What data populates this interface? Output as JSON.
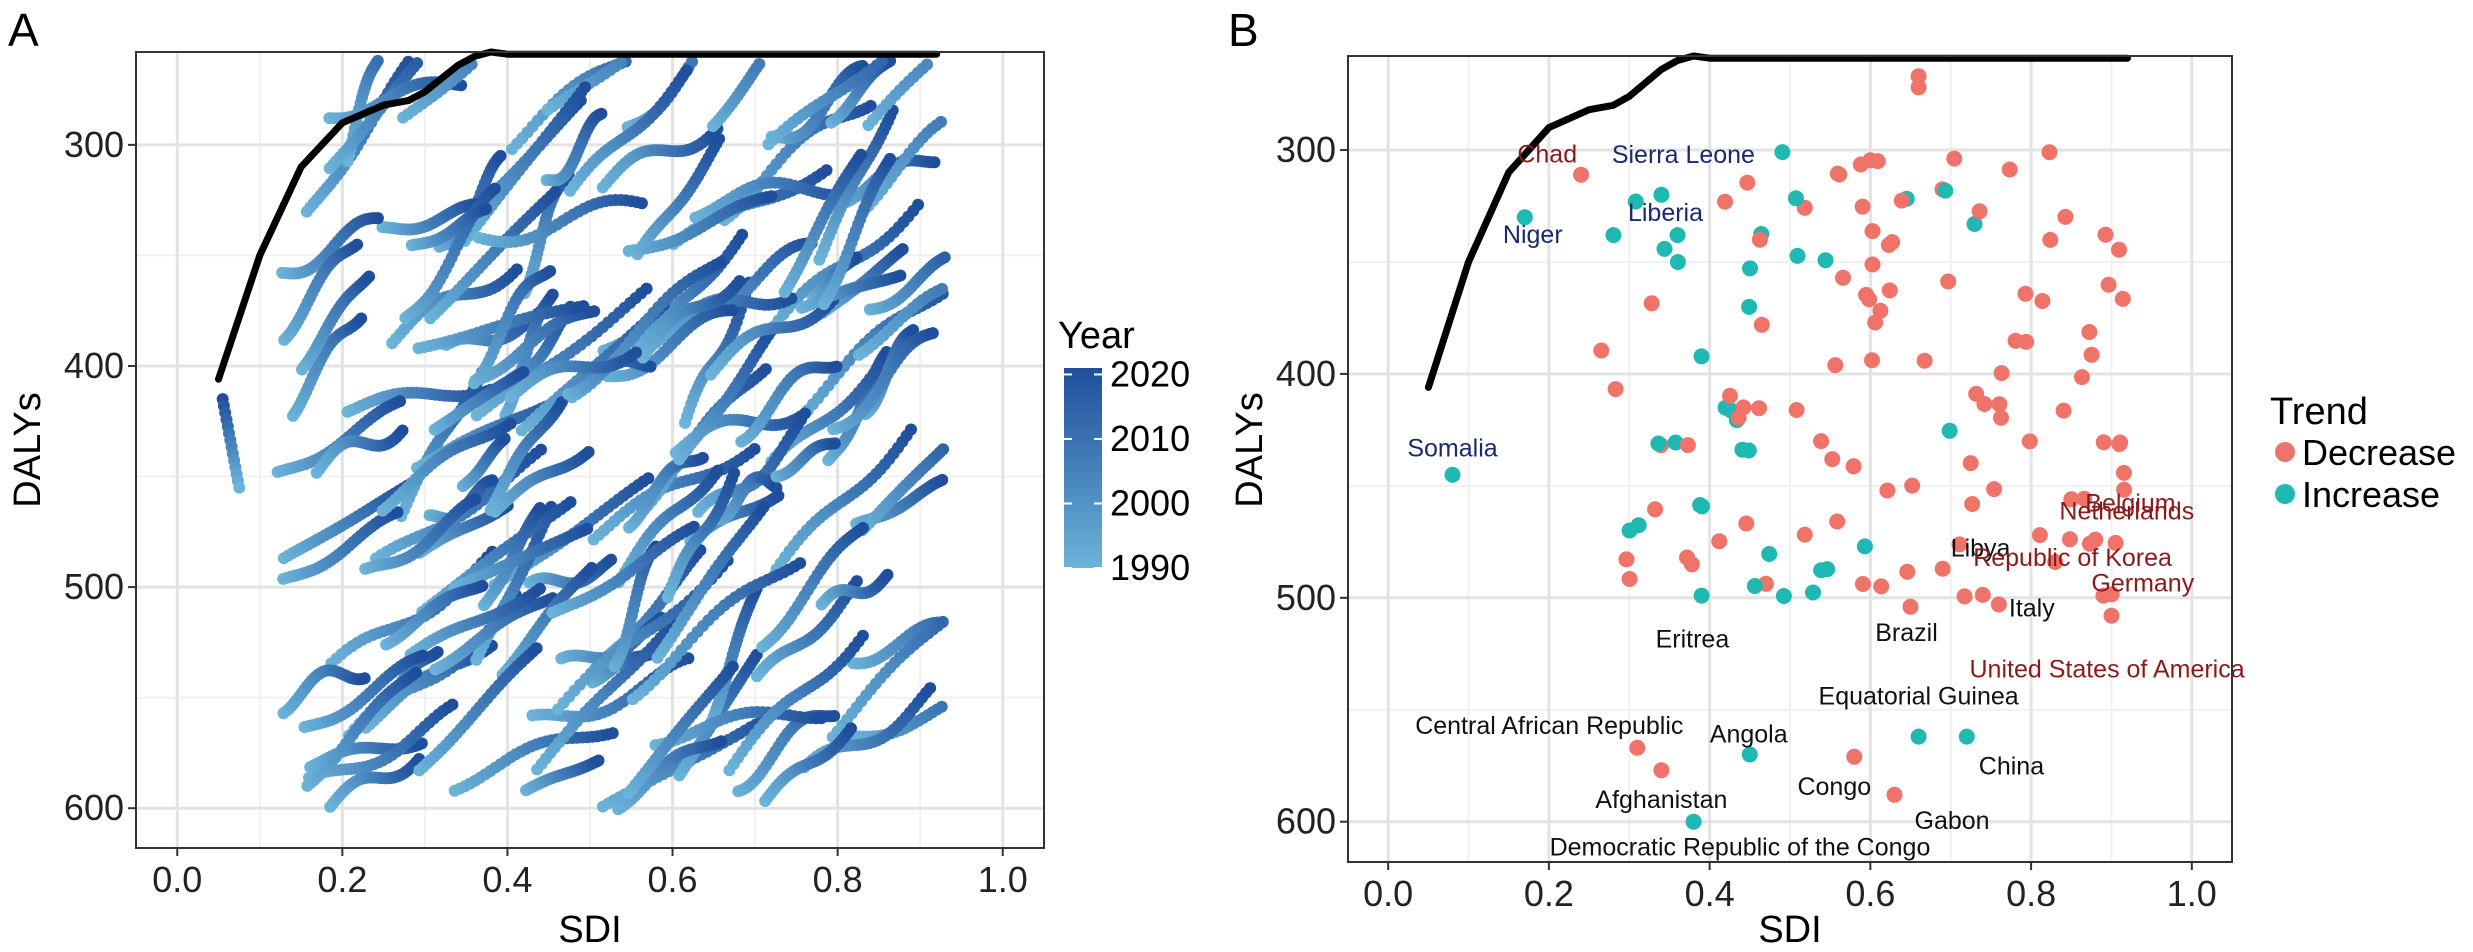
{
  "chart_data": [
    {
      "panel": "A",
      "type": "scatter",
      "xlabel": "SDI",
      "ylabel": "DALYs",
      "xlim": [
        -0.05,
        1.05
      ],
      "ylim": [
        618,
        258
      ],
      "y_reversed": true,
      "xticks": [
        "0.0",
        "0.2",
        "0.4",
        "0.6",
        "0.8",
        "1.0"
      ],
      "yticks": [
        "300",
        "400",
        "500",
        "600"
      ],
      "grid": true,
      "legend": {
        "title": "Year",
        "type": "colorbar",
        "placement": "right",
        "labels": [
          "2020",
          "2010",
          "2000",
          "1990"
        ],
        "min": 1990,
        "max": 2021,
        "color_low": "#6bb3d9",
        "color_high": "#1f4e9c"
      },
      "frontier": {
        "sdi": [
          0.05,
          0.1,
          0.15,
          0.2,
          0.25,
          0.28,
          0.3,
          0.32,
          0.34,
          0.36,
          0.38,
          0.4,
          0.5,
          0.6,
          0.7,
          0.8,
          0.92
        ],
        "dalys": [
          406,
          350,
          310,
          290,
          282,
          280,
          276,
          270,
          264,
          260,
          258,
          259,
          259,
          259,
          259,
          259,
          259
        ],
        "color": "#000000"
      }
    },
    {
      "panel": "B",
      "type": "scatter",
      "xlabel": "SDI",
      "ylabel": "DALYs",
      "xlim": [
        -0.05,
        1.05
      ],
      "ylim": [
        618,
        258
      ],
      "y_reversed": true,
      "xticks": [
        "0.0",
        "0.2",
        "0.4",
        "0.6",
        "0.8",
        "1.0"
      ],
      "yticks": [
        "300",
        "400",
        "500",
        "600"
      ],
      "grid": true,
      "legend": {
        "title": "Trend",
        "placement": "right",
        "entries": [
          {
            "name": "Decrease",
            "color": "#ef7369"
          },
          {
            "name": "Increase",
            "color": "#1fb8b2"
          }
        ]
      },
      "frontier": {
        "sdi": [
          0.05,
          0.1,
          0.15,
          0.2,
          0.25,
          0.28,
          0.3,
          0.32,
          0.34,
          0.36,
          0.38,
          0.4,
          0.5,
          0.6,
          0.7,
          0.8,
          0.92
        ],
        "dalys": [
          406,
          350,
          310,
          290,
          282,
          280,
          276,
          270,
          264,
          260,
          258,
          259,
          259,
          259,
          259,
          259,
          259
        ],
        "color": "#000000"
      },
      "labeled_points": [
        {
          "name": "Chad",
          "sdi": 0.24,
          "dalys": 311,
          "trend": "Decrease"
        },
        {
          "name": "Sierra Leone",
          "sdi": 0.34,
          "dalys": 320,
          "trend": "Increase"
        },
        {
          "name": "Liberia",
          "sdi": 0.36,
          "dalys": 338,
          "trend": "Increase"
        },
        {
          "name": "Niger",
          "sdi": 0.17,
          "dalys": 330,
          "trend": "Increase"
        },
        {
          "name": "Somalia",
          "sdi": 0.08,
          "dalys": 445,
          "trend": "Increase"
        },
        {
          "name": "Belgium",
          "sdi": 0.85,
          "dalys": 456,
          "trend": "Decrease"
        },
        {
          "name": "Netherlands",
          "sdi": 0.88,
          "dalys": 474,
          "trend": "Decrease"
        },
        {
          "name": "Libya",
          "sdi": 0.69,
          "dalys": 487,
          "trend": "Decrease"
        },
        {
          "name": "Republic of Korea",
          "sdi": 0.83,
          "dalys": 484,
          "trend": "Decrease"
        },
        {
          "name": "Italy",
          "sdi": 0.76,
          "dalys": 503,
          "trend": "Decrease"
        },
        {
          "name": "Germany",
          "sdi": 0.89,
          "dalys": 499,
          "trend": "Decrease"
        },
        {
          "name": "Brazil",
          "sdi": 0.65,
          "dalys": 504,
          "trend": "Decrease"
        },
        {
          "name": "United States of America",
          "sdi": 0.9,
          "dalys": 508,
          "trend": "Decrease"
        },
        {
          "name": "Eritrea",
          "sdi": 0.39,
          "dalys": 499,
          "trend": "Increase"
        },
        {
          "name": "Equatorial Guinea",
          "sdi": 0.66,
          "dalys": 562,
          "trend": "Increase"
        },
        {
          "name": "China",
          "sdi": 0.72,
          "dalys": 562,
          "trend": "Increase"
        },
        {
          "name": "Central African Republic",
          "sdi": 0.31,
          "dalys": 567,
          "trend": "Decrease"
        },
        {
          "name": "Angola",
          "sdi": 0.45,
          "dalys": 570,
          "trend": "Increase"
        },
        {
          "name": "Congo",
          "sdi": 0.58,
          "dalys": 571,
          "trend": "Decrease"
        },
        {
          "name": "Afghanistan",
          "sdi": 0.34,
          "dalys": 577,
          "trend": "Decrease"
        },
        {
          "name": "Gabon",
          "sdi": 0.63,
          "dalys": 588,
          "trend": "Decrease"
        },
        {
          "name": "Democratic Republic of the Congo",
          "sdi": 0.38,
          "dalys": 600,
          "trend": "Increase"
        }
      ]
    }
  ]
}
